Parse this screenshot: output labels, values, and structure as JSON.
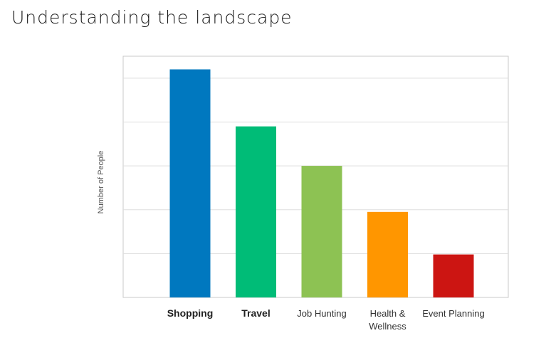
{
  "page": {
    "title": "Understanding the landscape"
  },
  "chart_data": {
    "type": "bar",
    "title": "",
    "xlabel": "",
    "ylabel": "Number of People",
    "categories": [
      "Shopping",
      "Travel",
      "Job Hunting",
      "Health & Wellness",
      "Event Planning"
    ],
    "category_lines": [
      [
        "Shopping"
      ],
      [
        "Travel"
      ],
      [
        "Job Hunting"
      ],
      [
        "Health &",
        "Wellness"
      ],
      [
        "Event Planning"
      ]
    ],
    "emphasized_categories": [
      "Shopping",
      "Travel"
    ],
    "values": [
      5.2,
      3.9,
      3.0,
      1.95,
      0.98
    ],
    "colors": [
      "#0078BF",
      "#00BC77",
      "#8DC253",
      "#FF9600",
      "#CC1512"
    ],
    "ylim": [
      0,
      5.5
    ],
    "ytick_count": 5,
    "grid": true,
    "show_y_ticklabels": false,
    "legend": "none"
  }
}
